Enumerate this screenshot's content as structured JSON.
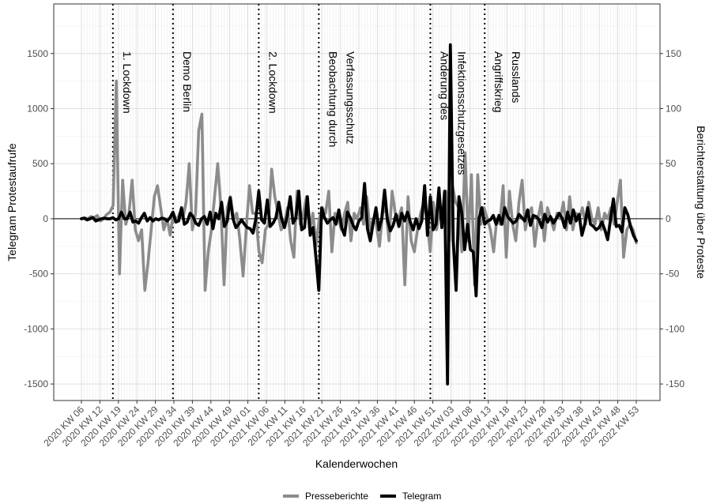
{
  "chart_data": {
    "type": "line",
    "title": "",
    "xlabel": "Kalenderwochen",
    "ylabel_left": "Telegram Protestaufrufe",
    "ylabel_right": "Berichterstattung über Proteste",
    "ylim_left": [
      -1650,
      1950
    ],
    "ylim_right": [
      -165,
      195
    ],
    "y_ticks_left": [
      -1500,
      -1000,
      -500,
      0,
      500,
      1000,
      1500
    ],
    "y_ticks_right": [
      -150,
      -100,
      -50,
      0,
      50,
      100,
      150
    ],
    "x_tick_labels": [
      "2020 KW 06",
      "2020 KW 12",
      "2020 KW 19",
      "2020 KW 24",
      "2020 KW 29",
      "2020 KW 34",
      "2020 KW 39",
      "2020 KW 44",
      "2020 KW 49",
      "2021 KW 01",
      "2021 KW 06",
      "2021 KW 11",
      "2021 KW 16",
      "2021 KW 21",
      "2021 KW 26",
      "2021 KW 31",
      "2021 KW 36",
      "2021 KW 41",
      "2021 KW 46",
      "2021 KW 51",
      "2022 KW 03",
      "2022 KW 08",
      "2022 KW 13",
      "2022 KW 18",
      "2022 KW 23",
      "2022 KW 28",
      "2022 KW 33",
      "2022 KW 38",
      "2022 KW 43",
      "2022 KW 48",
      "2022 KW 53"
    ],
    "grid": true,
    "legend_position": "bottom",
    "events": [
      {
        "week_index": 11,
        "lines": [
          "1. Lockdown"
        ]
      },
      {
        "week_index": 32,
        "lines": [
          "Demo Berlin"
        ]
      },
      {
        "week_index": 62,
        "lines": [
          "2. Lockdown"
        ]
      },
      {
        "week_index": 83,
        "lines": [
          "Beobachtung durch",
          "Verfassungsschutz"
        ]
      },
      {
        "week_index": 122,
        "lines": [
          "Änderung des",
          "Infektionsschutzgesetzes"
        ]
      },
      {
        "week_index": 141,
        "lines": [
          "Angriffskrieg",
          "Russlands"
        ]
      }
    ],
    "series": [
      {
        "name": "Presseberichte",
        "axis": "right",
        "color": "#8c8c8c",
        "values": [
          0,
          1,
          0,
          2,
          1,
          3,
          -2,
          0,
          4,
          6,
          12,
          125,
          -50,
          35,
          -5,
          5,
          35,
          -10,
          -20,
          -10,
          -65,
          -40,
          -10,
          20,
          30,
          10,
          -10,
          0,
          -15,
          5,
          -2,
          5,
          0,
          15,
          50,
          -10,
          5,
          80,
          95,
          -65,
          -30,
          -10,
          20,
          50,
          10,
          -60,
          10,
          20,
          0,
          5,
          -20,
          -52,
          -8,
          30,
          5,
          5,
          -30,
          -40,
          -10,
          -5,
          45,
          20,
          5,
          -10,
          -5,
          10,
          -20,
          -35,
          25,
          -5,
          5,
          20,
          -10,
          5,
          -25,
          0,
          10,
          5,
          25,
          -30,
          5,
          0,
          -10,
          5,
          15,
          -20,
          5,
          0,
          10,
          -5,
          20,
          -10,
          0,
          -5,
          -25,
          5,
          10,
          -20,
          25,
          5,
          0,
          10,
          -60,
          20,
          -20,
          -30,
          -10,
          5,
          15,
          0,
          -30,
          15,
          -10,
          10,
          5,
          25,
          -20,
          30,
          15,
          10,
          -30,
          60,
          -20,
          40,
          -60,
          40,
          -5,
          10,
          0,
          -10,
          -30,
          0,
          -5,
          30,
          -35,
          25,
          -5,
          -20,
          15,
          35,
          -10,
          5,
          10,
          -25,
          0,
          15,
          -20,
          10,
          0,
          -10,
          5,
          0,
          15,
          -10,
          20,
          -10,
          5,
          0,
          10,
          -5,
          15,
          0,
          -5,
          10,
          -10,
          5,
          0,
          10,
          -5,
          15,
          35,
          -35,
          -10,
          -5,
          -10,
          -22
        ]
      },
      {
        "name": "Telegram",
        "axis": "left",
        "color": "#000000",
        "values": [
          0,
          5,
          -10,
          0,
          10,
          -20,
          -10,
          0,
          5,
          0,
          0,
          10,
          -10,
          0,
          60,
          0,
          0,
          60,
          -30,
          -20,
          -40,
          10,
          50,
          -20,
          10,
          -20,
          0,
          -10,
          5,
          0,
          -20,
          10,
          60,
          -30,
          -20,
          100,
          -50,
          -30,
          50,
          20,
          -40,
          -60,
          0,
          20,
          -50,
          60,
          -90,
          50,
          0,
          150,
          -70,
          -20,
          190,
          0,
          -80,
          -50,
          -10,
          -50,
          -80,
          -90,
          -130,
          0,
          250,
          -10,
          -40,
          170,
          -70,
          -40,
          10,
          150,
          0,
          -80,
          30,
          200,
          -40,
          10,
          250,
          -100,
          -80,
          200,
          -150,
          -80,
          -350,
          -650,
          100,
          10,
          -40,
          -10,
          10,
          -50,
          80,
          -80,
          -150,
          60,
          10,
          -60,
          -100,
          -20,
          10,
          320,
          -90,
          -200,
          -40,
          100,
          -100,
          0,
          260,
          -10,
          -110,
          -60,
          40,
          -70,
          50,
          -20,
          60,
          -30,
          -100,
          0,
          -90,
          -20,
          300,
          -150,
          200,
          -100,
          -50,
          280,
          -80,
          250,
          -1500,
          1580,
          -200,
          -650,
          200,
          50,
          -280,
          -50,
          -280,
          -300,
          -700,
          0,
          100,
          -50,
          -20,
          -10,
          30,
          -50,
          30,
          -50,
          100,
          20,
          -10,
          -40,
          -20,
          40,
          10,
          -20,
          80,
          -60,
          30,
          20,
          -10,
          -80,
          40,
          -30,
          20,
          -40,
          0,
          50,
          10,
          -80,
          60,
          -40,
          80,
          -20,
          40,
          -150,
          -50,
          100,
          -50,
          -70,
          -100,
          -80,
          -30,
          -100,
          -190,
          -5,
          180,
          -70,
          -60,
          -120,
          100,
          40,
          -70,
          -150,
          -200
        ]
      }
    ]
  }
}
